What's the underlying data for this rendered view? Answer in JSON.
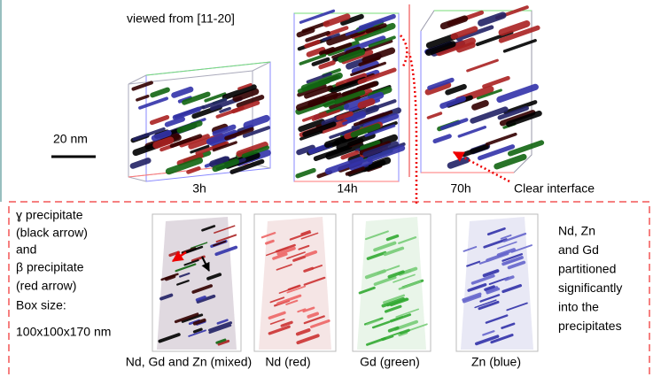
{
  "top": {
    "view_label": "viewed from [11-20]",
    "scale_bar": "20 nm",
    "times": [
      "3h",
      "14h",
      "70h"
    ],
    "annotation": "Clear interface"
  },
  "bottom": {
    "left_notes": [
      "ɣ precipitate",
      "(black arrow)",
      "and",
      "β precipitate",
      "(red arrow)",
      "Box size:",
      "100x100x170 nm"
    ],
    "right_notes": [
      "Nd, Zn",
      "and Gd",
      "partitioned",
      "significantly",
      "into the",
      "precipitates"
    ],
    "panel_labels": [
      "Nd, Gd and Zn (mixed)",
      "Nd (red)",
      "Gd (green)",
      "Zn (blue)"
    ]
  }
}
